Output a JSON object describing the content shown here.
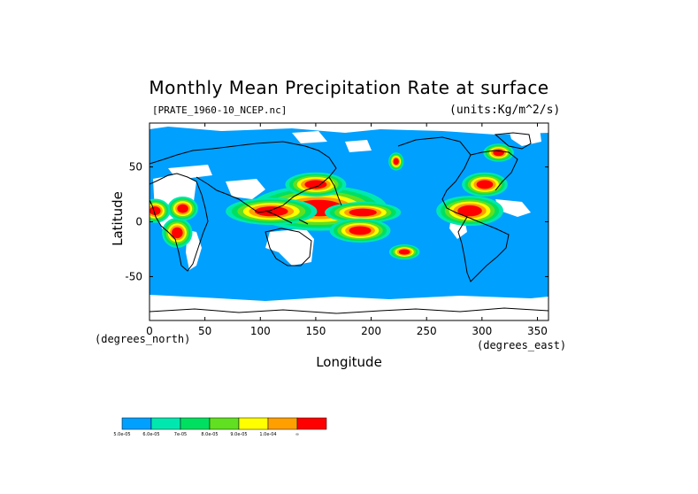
{
  "title": "Monthly Mean Precipitation Rate at surface",
  "subtitle_left": "[PRATE_1960-10_NCEP.nc]",
  "subtitle_right": "(units:Kg/m^2/s)",
  "chart_data": {
    "type": "heatmap",
    "title": "Monthly Mean Precipitation Rate at surface",
    "xlabel": "Longitude",
    "ylabel": "Latitude",
    "x_unit": "(degrees_east)",
    "y_unit": "(degrees_north)",
    "xlim": [
      0,
      360
    ],
    "ylim": [
      -90,
      90
    ],
    "x_ticks": [
      0,
      50,
      100,
      150,
      200,
      250,
      300,
      350
    ],
    "y_ticks": [
      -50,
      0,
      50
    ],
    "background_color": "#00a0ff",
    "legend": {
      "bins": [
        {
          "label": "5.0e-05",
          "color": "#00a0ff"
        },
        {
          "label": "6.0e-05",
          "color": "#00e8b0"
        },
        {
          "label": "7e-05",
          "color": "#00e060"
        },
        {
          "label": "8.0e-05",
          "color": "#60e020"
        },
        {
          "label": "9.0e-05",
          "color": "#ffff00"
        },
        {
          "label": "1.0e-04",
          "color": "#ffa000"
        },
        {
          "label": "∞",
          "color": "#ff0000"
        }
      ]
    },
    "regions": [
      {
        "lon": [
          20,
          30
        ],
        "lat": [
          -15,
          -5
        ],
        "level": 6
      },
      {
        "lon": [
          25,
          35
        ],
        "lat": [
          8,
          16
        ],
        "level": 6
      },
      {
        "lon": [
          0,
          10
        ],
        "lat": [
          6,
          14
        ],
        "level": 6
      },
      {
        "lon": [
          130,
          175
        ],
        "lat": [
          5,
          20
        ],
        "level": 6
      },
      {
        "lon": [
          180,
          205
        ],
        "lat": [
          5,
          12
        ],
        "level": 6
      },
      {
        "lon": [
          180,
          200
        ],
        "lat": [
          -12,
          -4
        ],
        "level": 6
      },
      {
        "lon": [
          95,
          125
        ],
        "lat": [
          5,
          14
        ],
        "level": 6
      },
      {
        "lon": [
          140,
          160
        ],
        "lat": [
          30,
          38
        ],
        "level": 6
      },
      {
        "lon": [
          225,
          235
        ],
        "lat": [
          -30,
          -25
        ],
        "level": 6
      },
      {
        "lon": [
          278,
          300
        ],
        "lat": [
          5,
          15
        ],
        "level": 6
      },
      {
        "lon": [
          295,
          310
        ],
        "lat": [
          30,
          38
        ],
        "level": 6
      },
      {
        "lon": [
          220,
          225
        ],
        "lat": [
          52,
          58
        ],
        "level": 6
      },
      {
        "lon": [
          310,
          320
        ],
        "lat": [
          60,
          66
        ],
        "level": 6
      }
    ]
  }
}
